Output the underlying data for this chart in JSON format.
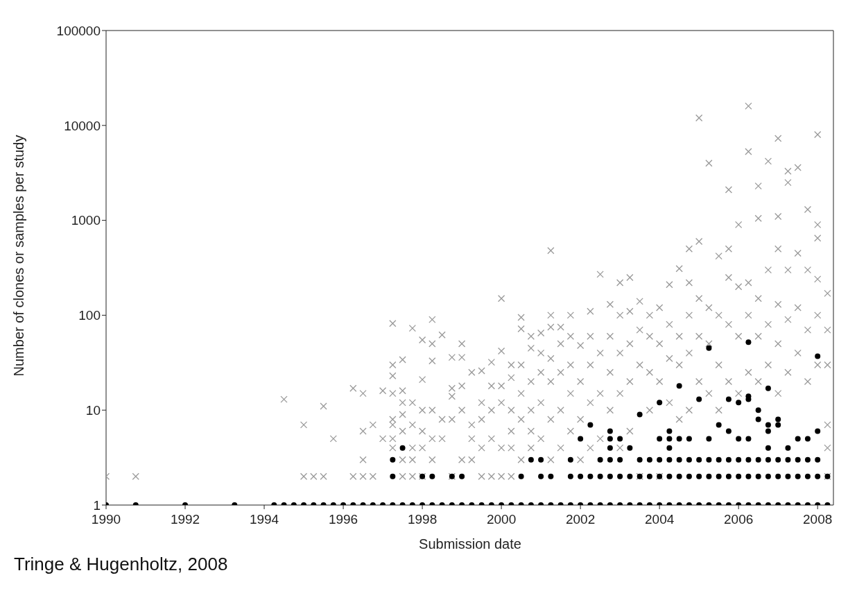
{
  "chart_data": {
    "type": "scatter",
    "xlabel": "Submission date",
    "ylabel": "Number of clones or samples per study",
    "annotations": [
      "Tringe & Hugenholtz, 2008"
    ],
    "log": "y",
    "grid": false,
    "legend": false,
    "xlim": [
      1990,
      2008.4
    ],
    "xticks": [
      1990,
      1992,
      1994,
      1996,
      1998,
      2000,
      2002,
      2004,
      2006,
      2008
    ],
    "ylim": [
      1,
      100000
    ],
    "yticks": [
      1,
      10,
      100,
      1000,
      10000,
      100000
    ],
    "series": [
      {
        "color": "#999999",
        "marker": "cross",
        "x": [
          1990,
          1990.75,
          1994.5,
          1995,
          1995,
          1995.25,
          1995.5,
          1995.5,
          1995.75,
          1996.25,
          1996.25,
          1996.5,
          1996.5,
          1996.5,
          1996.5,
          1996.75,
          1996.75,
          1997,
          1997,
          1997.25,
          1997.25,
          1997.25,
          1997.25,
          1997.25,
          1997.25,
          1997.25,
          1997.25,
          1997.5,
          1997.5,
          1997.5,
          1997.5,
          1997.5,
          1997.5,
          1997.5,
          1997.75,
          1997.75,
          1997.75,
          1997.75,
          1997.75,
          1997.75,
          1998,
          1998,
          1998,
          1998,
          1998,
          1998,
          1998.25,
          1998.25,
          1998.25,
          1998.25,
          1998.25,
          1998.25,
          1998.5,
          1998.5,
          1998.5,
          1998.75,
          1998.75,
          1998.75,
          1998.75,
          1998.75,
          1999,
          1999,
          1999,
          1999,
          1999,
          1999.25,
          1999.25,
          1999.25,
          1999.25,
          1999.5,
          1999.5,
          1999.5,
          1999.5,
          1999.5,
          1999.75,
          1999.75,
          1999.75,
          1999.75,
          1999.75,
          2000,
          2000,
          2000,
          2000,
          2000,
          2000,
          2000.25,
          2000.25,
          2000.25,
          2000.25,
          2000.25,
          2000.25,
          2000.5,
          2000.5,
          2000.5,
          2000.5,
          2000.5,
          2000.5,
          2000.75,
          2000.75,
          2000.75,
          2000.75,
          2000.75,
          2000.75,
          2001,
          2001,
          2001,
          2001,
          2001,
          2001.25,
          2001.25,
          2001.25,
          2001.25,
          2001.25,
          2001.25,
          2001.25,
          2001.5,
          2001.5,
          2001.5,
          2001.5,
          2001.5,
          2001.75,
          2001.75,
          2001.75,
          2001.75,
          2001.75,
          2002,
          2002,
          2002,
          2002,
          2002.25,
          2002.25,
          2002.25,
          2002.25,
          2002.25,
          2002.5,
          2002.5,
          2002.5,
          2002.5,
          2002.75,
          2002.75,
          2002.75,
          2002.75,
          2003,
          2003,
          2003,
          2003,
          2003,
          2003.25,
          2003.25,
          2003.25,
          2003.25,
          2003.25,
          2003.5,
          2003.5,
          2003.5,
          2003.5,
          2003.75,
          2003.75,
          2003.75,
          2003.75,
          2004,
          2004,
          2004,
          2004,
          2004.25,
          2004.25,
          2004.25,
          2004.25,
          2004.5,
          2004.5,
          2004.5,
          2004.5,
          2004.75,
          2004.75,
          2004.75,
          2004.75,
          2004.75,
          2005,
          2005,
          2005,
          2005,
          2005,
          2005.25,
          2005.25,
          2005.25,
          2005.25,
          2005.5,
          2005.5,
          2005.5,
          2005.5,
          2005.75,
          2005.75,
          2005.75,
          2005.75,
          2005.75,
          2006,
          2006,
          2006,
          2006,
          2006.25,
          2006.25,
          2006.25,
          2006.25,
          2006.25,
          2006.5,
          2006.5,
          2006.5,
          2006.5,
          2006.5,
          2006.75,
          2006.75,
          2006.75,
          2006.75,
          2007,
          2007,
          2007,
          2007,
          2007,
          2007,
          2007.25,
          2007.25,
          2007.25,
          2007.25,
          2007.25,
          2007.5,
          2007.5,
          2007.5,
          2007.5,
          2007.75,
          2007.75,
          2007.75,
          2007.75,
          2008,
          2008,
          2008,
          2008,
          2008,
          2008,
          2008.25,
          2008.25,
          2008.25,
          2008.25,
          2008.25,
          2008.25
        ],
        "values": [
          2,
          2,
          13,
          2,
          7,
          2,
          2,
          11,
          5,
          2,
          17,
          2,
          3,
          6,
          15,
          2,
          7,
          5,
          16,
          4,
          5,
          7,
          8,
          15,
          23,
          30,
          82,
          2,
          3,
          6,
          9,
          12,
          16,
          34,
          2,
          3,
          4,
          7,
          12,
          73,
          2,
          4,
          6,
          10,
          21,
          55,
          3,
          5,
          10,
          33,
          50,
          90,
          5,
          8,
          62,
          2,
          8,
          14,
          17,
          36,
          3,
          10,
          18,
          36,
          50,
          3,
          5,
          7,
          25,
          2,
          4,
          8,
          12,
          26,
          2,
          5,
          10,
          18,
          32,
          2,
          4,
          12,
          18,
          42,
          150,
          2,
          4,
          6,
          10,
          22,
          30,
          3,
          8,
          15,
          30,
          72,
          95,
          4,
          6,
          10,
          20,
          45,
          60,
          5,
          12,
          25,
          40,
          65,
          3,
          8,
          20,
          35,
          75,
          100,
          480,
          4,
          10,
          25,
          50,
          75,
          6,
          15,
          30,
          60,
          100,
          3,
          8,
          20,
          48,
          4,
          12,
          30,
          60,
          110,
          5,
          15,
          40,
          270,
          10,
          25,
          60,
          130,
          4,
          15,
          40,
          100,
          220,
          6,
          20,
          50,
          110,
          250,
          2,
          30,
          70,
          140,
          10,
          25,
          60,
          100,
          2,
          20,
          50,
          120,
          12,
          35,
          80,
          210,
          8,
          30,
          60,
          310,
          10,
          40,
          100,
          220,
          500,
          20,
          60,
          150,
          600,
          12000,
          15,
          50,
          120,
          4000,
          10,
          30,
          100,
          420,
          20,
          80,
          250,
          500,
          2100,
          15,
          60,
          200,
          900,
          25,
          100,
          220,
          5300,
          16000,
          20,
          60,
          150,
          1050,
          2300,
          30,
          80,
          300,
          4200,
          15,
          50,
          130,
          500,
          1100,
          7300,
          25,
          90,
          300,
          2500,
          3300,
          40,
          120,
          450,
          3600,
          20,
          70,
          300,
          1300,
          30,
          100,
          240,
          650,
          900,
          8000,
          2,
          4,
          7,
          30,
          70,
          170
        ]
      },
      {
        "color": "#000000",
        "marker": "circle",
        "x": [
          1990,
          1990.75,
          1992,
          1993.25,
          1994.25,
          1994.5,
          1994.75,
          1995,
          1995.25,
          1995.5,
          1995.75,
          1996,
          1996.25,
          1996.5,
          1996.75,
          1997,
          1997.25,
          1997.5,
          1997.75,
          1998,
          1998.25,
          1998.5,
          1998.75,
          1999,
          1999.25,
          1999.5,
          1999.75,
          2000,
          2000.25,
          2000.5,
          2000.75,
          2001,
          2001.25,
          2001.5,
          2001.75,
          2002,
          2002.25,
          2002.5,
          2002.75,
          2003,
          2003.25,
          2003.5,
          2003.75,
          2004,
          2004.25,
          2004.5,
          2004.75,
          2005,
          2005.25,
          2005.5,
          2005.75,
          2006,
          2006.25,
          2006.5,
          2006.75,
          2007,
          2007.25,
          2007.5,
          2007.75,
          2008,
          2008.25,
          1997.25,
          1998,
          1998.25,
          1998.75,
          1999,
          2000.5,
          2001,
          2001.25,
          2001.75,
          2002,
          2002.25,
          2002.5,
          2002.75,
          2003,
          2003.25,
          2003.5,
          2003.75,
          2004,
          2004.25,
          2004.5,
          2004.75,
          2005,
          2005.25,
          2005.5,
          2005.75,
          2006,
          2006.25,
          2006.5,
          2006.75,
          2007,
          2007.25,
          2007.5,
          2007.75,
          2008,
          2008.25,
          1997.25,
          2000.75,
          2001,
          2001.75,
          2002.5,
          2002.75,
          2003,
          2003.5,
          2003.75,
          2004,
          2004.25,
          2004.5,
          2004.75,
          2005,
          2005.25,
          2005.5,
          2005.75,
          2006,
          2006.25,
          2006.5,
          2006.75,
          2007,
          2007.25,
          2007.5,
          2007.75,
          2008,
          1997.5,
          2002.75,
          2003.25,
          2004.25,
          2006.75,
          2007.25,
          2002,
          2002.75,
          2003,
          2004,
          2004.25,
          2004.5,
          2004.75,
          2005.25,
          2006,
          2006.25,
          2007.5,
          2007.75,
          2002.75,
          2004.25,
          2005.75,
          2006.75,
          2008,
          2002.25,
          2005.5,
          2006.75,
          2007,
          2006.5,
          2007,
          2003.5,
          2006.5,
          2004,
          2006,
          2005,
          2005.75,
          2006.25,
          2006.25,
          2006.75,
          2004.5,
          2008,
          2005.25,
          2006.25
        ],
        "values": [
          1,
          1,
          1,
          1,
          1,
          1,
          1,
          1,
          1,
          1,
          1,
          1,
          1,
          1,
          1,
          1,
          1,
          1,
          1,
          1,
          1,
          1,
          1,
          1,
          1,
          1,
          1,
          1,
          1,
          1,
          1,
          1,
          1,
          1,
          1,
          1,
          1,
          1,
          1,
          1,
          1,
          1,
          1,
          1,
          1,
          1,
          1,
          1,
          1,
          1,
          1,
          1,
          1,
          1,
          1,
          1,
          1,
          1,
          1,
          1,
          1,
          2,
          2,
          2,
          2,
          2,
          2,
          2,
          2,
          2,
          2,
          2,
          2,
          2,
          2,
          2,
          2,
          2,
          2,
          2,
          2,
          2,
          2,
          2,
          2,
          2,
          2,
          2,
          2,
          2,
          2,
          2,
          2,
          2,
          2,
          2,
          3,
          3,
          3,
          3,
          3,
          3,
          3,
          3,
          3,
          3,
          3,
          3,
          3,
          3,
          3,
          3,
          3,
          3,
          3,
          3,
          3,
          3,
          3,
          3,
          3,
          3,
          4,
          4,
          4,
          4,
          4,
          4,
          5,
          5,
          5,
          5,
          5,
          5,
          5,
          5,
          5,
          5,
          5,
          5,
          6,
          6,
          6,
          6,
          6,
          7,
          7,
          7,
          7,
          8,
          8,
          9,
          10,
          12,
          12,
          13,
          13,
          13,
          14,
          17,
          18,
          37,
          45,
          52
        ]
      }
    ]
  }
}
